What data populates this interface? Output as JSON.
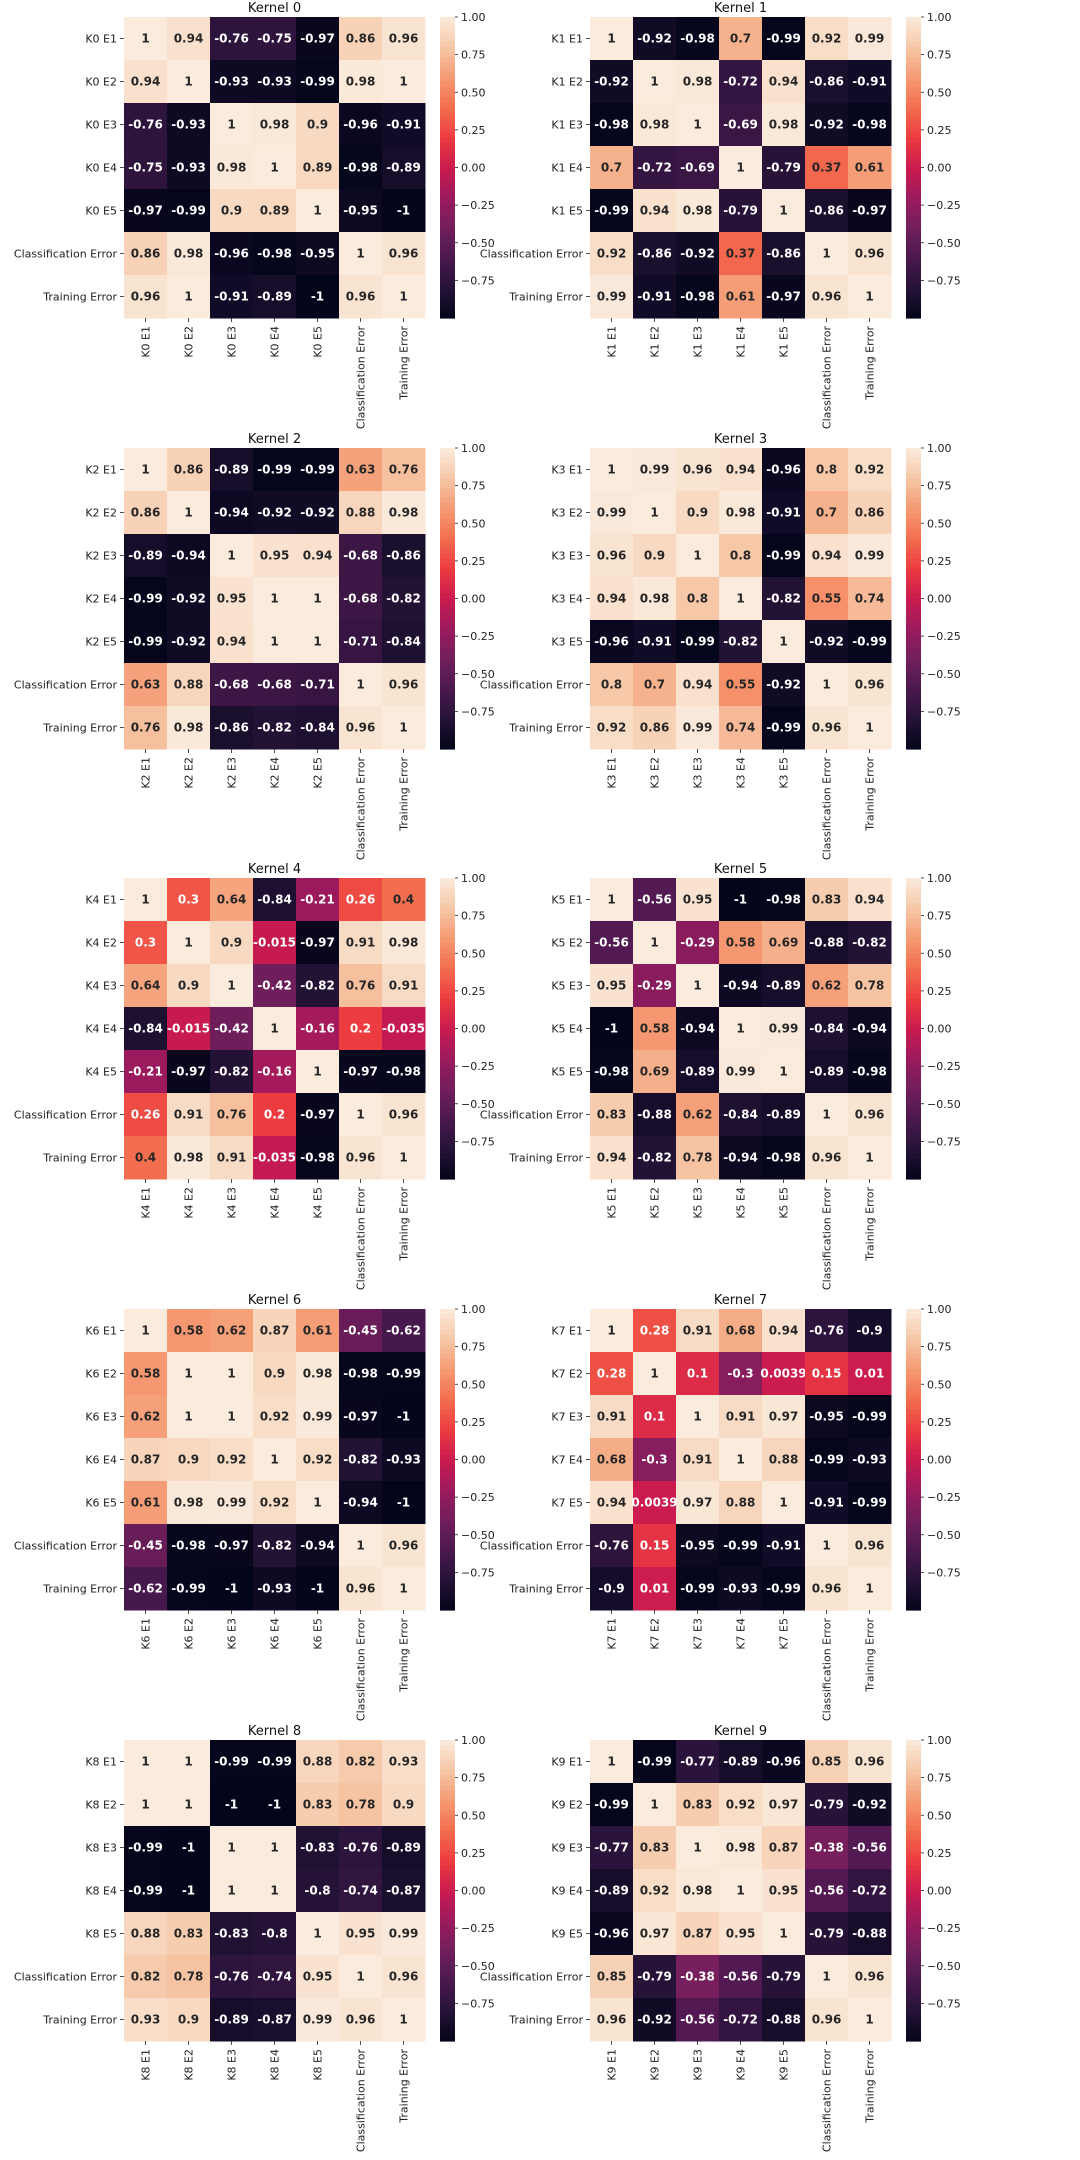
{
  "colorbar_ticks": [
    "1.00",
    "0.75",
    "0.50",
    "0.25",
    "0.00",
    "−0.25",
    "−0.50",
    "−0.75"
  ],
  "chart_data": [
    {
      "type": "heatmap",
      "title": "Kernel 0",
      "labels": [
        "K0 E1",
        "K0 E2",
        "K0 E3",
        "K0 E4",
        "K0 E5",
        "Classification Error",
        "Training Error"
      ],
      "values": [
        [
          "1",
          "0.94",
          "-0.76",
          "-0.75",
          "-0.97",
          "0.86",
          "0.96"
        ],
        [
          "0.94",
          "1",
          "-0.93",
          "-0.93",
          "-0.99",
          "0.98",
          "1"
        ],
        [
          "-0.76",
          "-0.93",
          "1",
          "0.98",
          "0.9",
          "-0.96",
          "-0.91"
        ],
        [
          "-0.75",
          "-0.93",
          "0.98",
          "1",
          "0.89",
          "-0.98",
          "-0.89"
        ],
        [
          "-0.97",
          "-0.99",
          "0.9",
          "0.89",
          "1",
          "-0.95",
          "-1"
        ],
        [
          "0.86",
          "0.98",
          "-0.96",
          "-0.98",
          "-0.95",
          "1",
          "0.96"
        ],
        [
          "0.96",
          "1",
          "-0.91",
          "-0.89",
          "-1",
          "0.96",
          "1"
        ]
      ]
    },
    {
      "type": "heatmap",
      "title": "Kernel 1",
      "labels": [
        "K1 E1",
        "K1 E2",
        "K1 E3",
        "K1 E4",
        "K1 E5",
        "Classification Error",
        "Training Error"
      ],
      "values": [
        [
          "1",
          "-0.92",
          "-0.98",
          "0.7",
          "-0.99",
          "0.92",
          "0.99"
        ],
        [
          "-0.92",
          "1",
          "0.98",
          "-0.72",
          "0.94",
          "-0.86",
          "-0.91"
        ],
        [
          "-0.98",
          "0.98",
          "1",
          "-0.69",
          "0.98",
          "-0.92",
          "-0.98"
        ],
        [
          "0.7",
          "-0.72",
          "-0.69",
          "1",
          "-0.79",
          "0.37",
          "0.61"
        ],
        [
          "-0.99",
          "0.94",
          "0.98",
          "-0.79",
          "1",
          "-0.86",
          "-0.97"
        ],
        [
          "0.92",
          "-0.86",
          "-0.92",
          "0.37",
          "-0.86",
          "1",
          "0.96"
        ],
        [
          "0.99",
          "-0.91",
          "-0.98",
          "0.61",
          "-0.97",
          "0.96",
          "1"
        ]
      ]
    },
    {
      "type": "heatmap",
      "title": "Kernel 2",
      "labels": [
        "K2 E1",
        "K2 E2",
        "K2 E3",
        "K2 E4",
        "K2 E5",
        "Classification Error",
        "Training Error"
      ],
      "values": [
        [
          "1",
          "0.86",
          "-0.89",
          "-0.99",
          "-0.99",
          "0.63",
          "0.76"
        ],
        [
          "0.86",
          "1",
          "-0.94",
          "-0.92",
          "-0.92",
          "0.88",
          "0.98"
        ],
        [
          "-0.89",
          "-0.94",
          "1",
          "0.95",
          "0.94",
          "-0.68",
          "-0.86"
        ],
        [
          "-0.99",
          "-0.92",
          "0.95",
          "1",
          "1",
          "-0.68",
          "-0.82"
        ],
        [
          "-0.99",
          "-0.92",
          "0.94",
          "1",
          "1",
          "-0.71",
          "-0.84"
        ],
        [
          "0.63",
          "0.88",
          "-0.68",
          "-0.68",
          "-0.71",
          "1",
          "0.96"
        ],
        [
          "0.76",
          "0.98",
          "-0.86",
          "-0.82",
          "-0.84",
          "0.96",
          "1"
        ]
      ]
    },
    {
      "type": "heatmap",
      "title": "Kernel 3",
      "labels": [
        "K3 E1",
        "K3 E2",
        "K3 E3",
        "K3 E4",
        "K3 E5",
        "Classification Error",
        "Training Error"
      ],
      "values": [
        [
          "1",
          "0.99",
          "0.96",
          "0.94",
          "-0.96",
          "0.8",
          "0.92"
        ],
        [
          "0.99",
          "1",
          "0.9",
          "0.98",
          "-0.91",
          "0.7",
          "0.86"
        ],
        [
          "0.96",
          "0.9",
          "1",
          "0.8",
          "-0.99",
          "0.94",
          "0.99"
        ],
        [
          "0.94",
          "0.98",
          "0.8",
          "1",
          "-0.82",
          "0.55",
          "0.74"
        ],
        [
          "-0.96",
          "-0.91",
          "-0.99",
          "-0.82",
          "1",
          "-0.92",
          "-0.99"
        ],
        [
          "0.8",
          "0.7",
          "0.94",
          "0.55",
          "-0.92",
          "1",
          "0.96"
        ],
        [
          "0.92",
          "0.86",
          "0.99",
          "0.74",
          "-0.99",
          "0.96",
          "1"
        ]
      ]
    },
    {
      "type": "heatmap",
      "title": "Kernel 4",
      "labels": [
        "K4 E1",
        "K4 E2",
        "K4 E3",
        "K4 E4",
        "K4 E5",
        "Classification Error",
        "Training Error"
      ],
      "values": [
        [
          "1",
          "0.3",
          "0.64",
          "-0.84",
          "-0.21",
          "0.26",
          "0.4"
        ],
        [
          "0.3",
          "1",
          "0.9",
          "-0.015",
          "-0.97",
          "0.91",
          "0.98"
        ],
        [
          "0.64",
          "0.9",
          "1",
          "-0.42",
          "-0.82",
          "0.76",
          "0.91"
        ],
        [
          "-0.84",
          "-0.015",
          "-0.42",
          "1",
          "-0.16",
          "0.2",
          "-0.035"
        ],
        [
          "-0.21",
          "-0.97",
          "-0.82",
          "-0.16",
          "1",
          "-0.97",
          "-0.98"
        ],
        [
          "0.26",
          "0.91",
          "0.76",
          "0.2",
          "-0.97",
          "1",
          "0.96"
        ],
        [
          "0.4",
          "0.98",
          "0.91",
          "-0.035",
          "-0.98",
          "0.96",
          "1"
        ]
      ]
    },
    {
      "type": "heatmap",
      "title": "Kernel 5",
      "labels": [
        "K5 E1",
        "K5 E2",
        "K5 E3",
        "K5 E4",
        "K5 E5",
        "Classification Error",
        "Training Error"
      ],
      "values": [
        [
          "1",
          "-0.56",
          "0.95",
          "-1",
          "-0.98",
          "0.83",
          "0.94"
        ],
        [
          "-0.56",
          "1",
          "-0.29",
          "0.58",
          "0.69",
          "-0.88",
          "-0.82"
        ],
        [
          "0.95",
          "-0.29",
          "1",
          "-0.94",
          "-0.89",
          "0.62",
          "0.78"
        ],
        [
          "-1",
          "0.58",
          "-0.94",
          "1",
          "0.99",
          "-0.84",
          "-0.94"
        ],
        [
          "-0.98",
          "0.69",
          "-0.89",
          "0.99",
          "1",
          "-0.89",
          "-0.98"
        ],
        [
          "0.83",
          "-0.88",
          "0.62",
          "-0.84",
          "-0.89",
          "1",
          "0.96"
        ],
        [
          "0.94",
          "-0.82",
          "0.78",
          "-0.94",
          "-0.98",
          "0.96",
          "1"
        ]
      ]
    },
    {
      "type": "heatmap",
      "title": "Kernel 6",
      "labels": [
        "K6 E1",
        "K6 E2",
        "K6 E3",
        "K6 E4",
        "K6 E5",
        "Classification Error",
        "Training Error"
      ],
      "values": [
        [
          "1",
          "0.58",
          "0.62",
          "0.87",
          "0.61",
          "-0.45",
          "-0.62"
        ],
        [
          "0.58",
          "1",
          "1",
          "0.9",
          "0.98",
          "-0.98",
          "-0.99"
        ],
        [
          "0.62",
          "1",
          "1",
          "0.92",
          "0.99",
          "-0.97",
          "-1"
        ],
        [
          "0.87",
          "0.9",
          "0.92",
          "1",
          "0.92",
          "-0.82",
          "-0.93"
        ],
        [
          "0.61",
          "0.98",
          "0.99",
          "0.92",
          "1",
          "-0.94",
          "-1"
        ],
        [
          "-0.45",
          "-0.98",
          "-0.97",
          "-0.82",
          "-0.94",
          "1",
          "0.96"
        ],
        [
          "-0.62",
          "-0.99",
          "-1",
          "-0.93",
          "-1",
          "0.96",
          "1"
        ]
      ]
    },
    {
      "type": "heatmap",
      "title": "Kernel 7",
      "labels": [
        "K7 E1",
        "K7 E2",
        "K7 E3",
        "K7 E4",
        "K7 E5",
        "Classification Error",
        "Training Error"
      ],
      "values": [
        [
          "1",
          "0.28",
          "0.91",
          "0.68",
          "0.94",
          "-0.76",
          "-0.9"
        ],
        [
          "0.28",
          "1",
          "0.1",
          "-0.3",
          "0.0039",
          "0.15",
          "0.01"
        ],
        [
          "0.91",
          "0.1",
          "1",
          "0.91",
          "0.97",
          "-0.95",
          "-0.99"
        ],
        [
          "0.68",
          "-0.3",
          "0.91",
          "1",
          "0.88",
          "-0.99",
          "-0.93"
        ],
        [
          "0.94",
          "0.0039",
          "0.97",
          "0.88",
          "1",
          "-0.91",
          "-0.99"
        ],
        [
          "-0.76",
          "0.15",
          "-0.95",
          "-0.99",
          "-0.91",
          "1",
          "0.96"
        ],
        [
          "-0.9",
          "0.01",
          "-0.99",
          "-0.93",
          "-0.99",
          "0.96",
          "1"
        ]
      ]
    },
    {
      "type": "heatmap",
      "title": "Kernel 8",
      "labels": [
        "K8 E1",
        "K8 E2",
        "K8 E3",
        "K8 E4",
        "K8 E5",
        "Classification Error",
        "Training Error"
      ],
      "values": [
        [
          "1",
          "1",
          "-0.99",
          "-0.99",
          "0.88",
          "0.82",
          "0.93"
        ],
        [
          "1",
          "1",
          "-1",
          "-1",
          "0.83",
          "0.78",
          "0.9"
        ],
        [
          "-0.99",
          "-1",
          "1",
          "1",
          "-0.83",
          "-0.76",
          "-0.89"
        ],
        [
          "-0.99",
          "-1",
          "1",
          "1",
          "-0.8",
          "-0.74",
          "-0.87"
        ],
        [
          "0.88",
          "0.83",
          "-0.83",
          "-0.8",
          "1",
          "0.95",
          "0.99"
        ],
        [
          "0.82",
          "0.78",
          "-0.76",
          "-0.74",
          "0.95",
          "1",
          "0.96"
        ],
        [
          "0.93",
          "0.9",
          "-0.89",
          "-0.87",
          "0.99",
          "0.96",
          "1"
        ]
      ]
    },
    {
      "type": "heatmap",
      "title": "Kernel 9",
      "labels": [
        "K9 E1",
        "K9 E2",
        "K9 E3",
        "K9 E4",
        "K9 E5",
        "Classification Error",
        "Training Error"
      ],
      "values": [
        [
          "1",
          "-0.99",
          "-0.77",
          "-0.89",
          "-0.96",
          "0.85",
          "0.96"
        ],
        [
          "-0.99",
          "1",
          "0.83",
          "0.92",
          "0.97",
          "-0.79",
          "-0.92"
        ],
        [
          "-0.77",
          "0.83",
          "1",
          "0.98",
          "0.87",
          "-0.38",
          "-0.56"
        ],
        [
          "-0.89",
          "0.92",
          "0.98",
          "1",
          "0.95",
          "-0.56",
          "-0.72"
        ],
        [
          "-0.96",
          "0.97",
          "0.87",
          "0.95",
          "1",
          "-0.79",
          "-0.88"
        ],
        [
          "0.85",
          "-0.79",
          "-0.38",
          "-0.56",
          "-0.79",
          "1",
          "0.96"
        ],
        [
          "0.96",
          "-0.92",
          "-0.56",
          "-0.72",
          "-0.88",
          "0.96",
          "1"
        ]
      ]
    }
  ]
}
